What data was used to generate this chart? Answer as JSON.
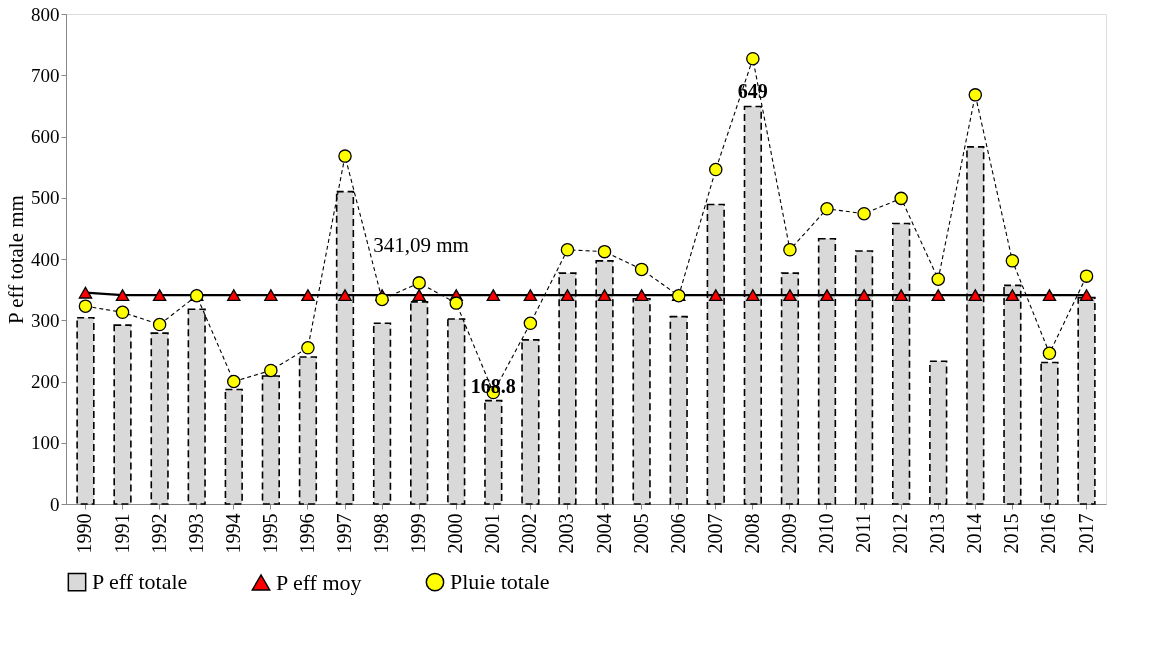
{
  "chart_data": {
    "type": "bar",
    "ylabel": "P eff totale mm",
    "categories": [
      "1990",
      "1991",
      "1992",
      "1993",
      "1994",
      "1995",
      "1996",
      "1997",
      "1998",
      "1999",
      "2000",
      "2001",
      "2002",
      "2003",
      "2004",
      "2005",
      "2006",
      "2007",
      "2008",
      "2009",
      "2010",
      "2011",
      "2012",
      "2013",
      "2014",
      "2015",
      "2016",
      "2017"
    ],
    "series": [
      {
        "name": "P eff totale",
        "color": "#d9d9d9",
        "values": [
          304,
          292,
          279,
          318,
          187,
          209,
          240,
          510,
          295,
          330,
          302,
          168.8,
          268,
          377,
          397,
          335,
          306,
          489,
          649,
          377,
          433,
          413,
          458,
          233,
          583,
          357,
          231,
          337
        ],
        "value_labels": [
          null,
          null,
          null,
          null,
          null,
          null,
          null,
          null,
          null,
          null,
          null,
          "168.8",
          null,
          null,
          null,
          null,
          null,
          null,
          "649",
          null,
          null,
          null,
          null,
          null,
          null,
          null,
          null,
          null
        ]
      },
      {
        "name": "P eff moy",
        "type": "line",
        "color": "#ff0000",
        "marker": "triangle",
        "line_style": "solid",
        "values": [
          345,
          341,
          341,
          341,
          341,
          341,
          341,
          341,
          341,
          341,
          341,
          341,
          341,
          341,
          341,
          341,
          341,
          341,
          341,
          341,
          341,
          341,
          341,
          341,
          341,
          341,
          341,
          341
        ]
      },
      {
        "name": "Pluie totale",
        "type": "line",
        "color": "#ffff00",
        "marker": "circle",
        "line_style": "dashed",
        "values": [
          323,
          313,
          293,
          340,
          200,
          218,
          255,
          568,
          334,
          361,
          328,
          182,
          295,
          415,
          412,
          383,
          340,
          546,
          727,
          415,
          482,
          474,
          499,
          367,
          668,
          397,
          246,
          372
        ]
      }
    ],
    "ylim": [
      0,
      800
    ],
    "yticks": [
      0,
      100,
      200,
      300,
      400,
      500,
      600,
      700,
      800
    ],
    "annotations": [
      "341,09 mm"
    ],
    "grid": false,
    "legend": "bottom"
  }
}
